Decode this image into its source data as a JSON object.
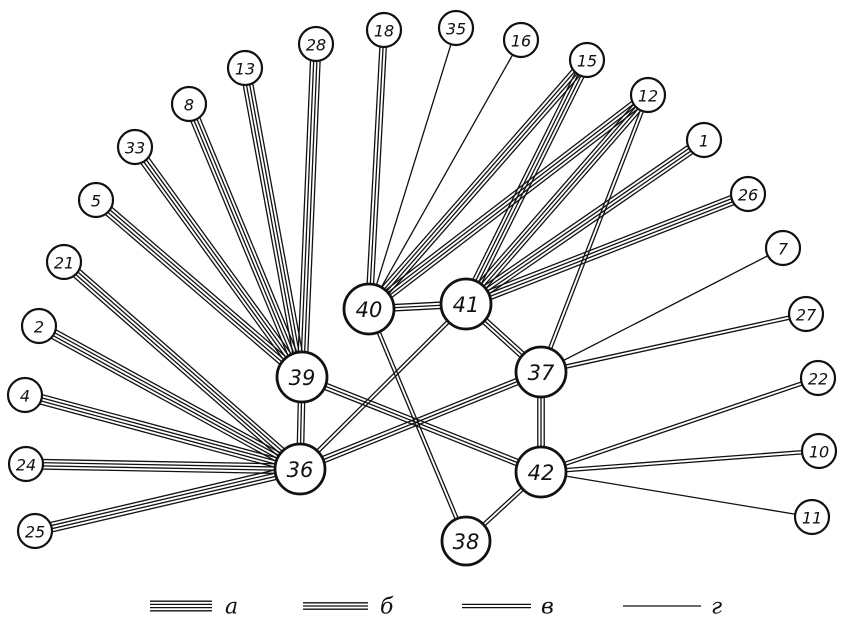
{
  "nodes": [
    {
      "id": "18",
      "label": "18"
    },
    {
      "id": "35",
      "label": "35"
    },
    {
      "id": "16",
      "label": "16"
    },
    {
      "id": "28",
      "label": "28"
    },
    {
      "id": "13",
      "label": "13"
    },
    {
      "id": "8",
      "label": "8"
    },
    {
      "id": "33",
      "label": "33"
    },
    {
      "id": "5",
      "label": "5"
    },
    {
      "id": "21",
      "label": "21"
    },
    {
      "id": "2",
      "label": "2"
    },
    {
      "id": "4",
      "label": "4"
    },
    {
      "id": "24",
      "label": "24"
    },
    {
      "id": "25",
      "label": "25"
    },
    {
      "id": "15",
      "label": "15"
    },
    {
      "id": "12",
      "label": "12"
    },
    {
      "id": "1",
      "label": "1"
    },
    {
      "id": "26",
      "label": "26"
    },
    {
      "id": "7",
      "label": "7"
    },
    {
      "id": "27",
      "label": "27"
    },
    {
      "id": "22",
      "label": "22"
    },
    {
      "id": "10",
      "label": "10"
    },
    {
      "id": "11",
      "label": "11"
    },
    {
      "id": "40",
      "label": "40",
      "hub": true
    },
    {
      "id": "41",
      "label": "41",
      "hub": true
    },
    {
      "id": "39",
      "label": "39",
      "hub": true
    },
    {
      "id": "37",
      "label": "37",
      "hub": true
    },
    {
      "id": "36",
      "label": "36",
      "hub": true
    },
    {
      "id": "42",
      "label": "42",
      "hub": true
    },
    {
      "id": "38",
      "label": "38",
      "hub": true
    }
  ],
  "edges": [
    {
      "from": "28",
      "to": "39",
      "type": "a"
    },
    {
      "from": "13",
      "to": "39",
      "type": "a"
    },
    {
      "from": "8",
      "to": "39",
      "type": "a"
    },
    {
      "from": "33",
      "to": "39",
      "type": "a"
    },
    {
      "from": "5",
      "to": "39",
      "type": "a"
    },
    {
      "from": "21",
      "to": "36",
      "type": "a"
    },
    {
      "from": "2",
      "to": "36",
      "type": "a"
    },
    {
      "from": "4",
      "to": "36",
      "type": "a"
    },
    {
      "from": "24",
      "to": "36",
      "type": "a"
    },
    {
      "from": "25",
      "to": "36",
      "type": "a"
    },
    {
      "from": "39",
      "to": "36",
      "type": "b"
    },
    {
      "from": "39",
      "to": "42",
      "type": "b"
    },
    {
      "from": "18",
      "to": "40",
      "type": "b"
    },
    {
      "from": "35",
      "to": "40",
      "type": "g"
    },
    {
      "from": "16",
      "to": "40",
      "type": "g"
    },
    {
      "from": "15",
      "to": "40",
      "type": "a"
    },
    {
      "from": "12",
      "to": "40",
      "type": "a"
    },
    {
      "from": "15",
      "to": "41",
      "type": "a"
    },
    {
      "from": "12",
      "to": "41",
      "type": "a"
    },
    {
      "from": "1",
      "to": "41",
      "type": "a"
    },
    {
      "from": "26",
      "to": "41",
      "type": "a"
    },
    {
      "from": "12",
      "to": "37",
      "type": "v"
    },
    {
      "from": "40",
      "to": "41",
      "type": "b"
    },
    {
      "from": "40",
      "to": "38",
      "type": "v"
    },
    {
      "from": "41",
      "to": "37",
      "type": "b"
    },
    {
      "from": "41",
      "to": "36",
      "type": "v"
    },
    {
      "from": "37",
      "to": "36",
      "type": "b"
    },
    {
      "from": "37",
      "to": "42",
      "type": "b"
    },
    {
      "from": "7",
      "to": "37",
      "type": "g"
    },
    {
      "from": "27",
      "to": "37",
      "type": "v"
    },
    {
      "from": "22",
      "to": "42",
      "type": "v"
    },
    {
      "from": "10",
      "to": "42",
      "type": "v"
    },
    {
      "from": "11",
      "to": "42",
      "type": "g"
    },
    {
      "from": "42",
      "to": "38",
      "type": "v"
    }
  ],
  "legend": [
    {
      "type": "a",
      "label": "а"
    },
    {
      "type": "b",
      "label": "б"
    },
    {
      "type": "v",
      "label": "в"
    },
    {
      "type": "g",
      "label": "г"
    }
  ]
}
